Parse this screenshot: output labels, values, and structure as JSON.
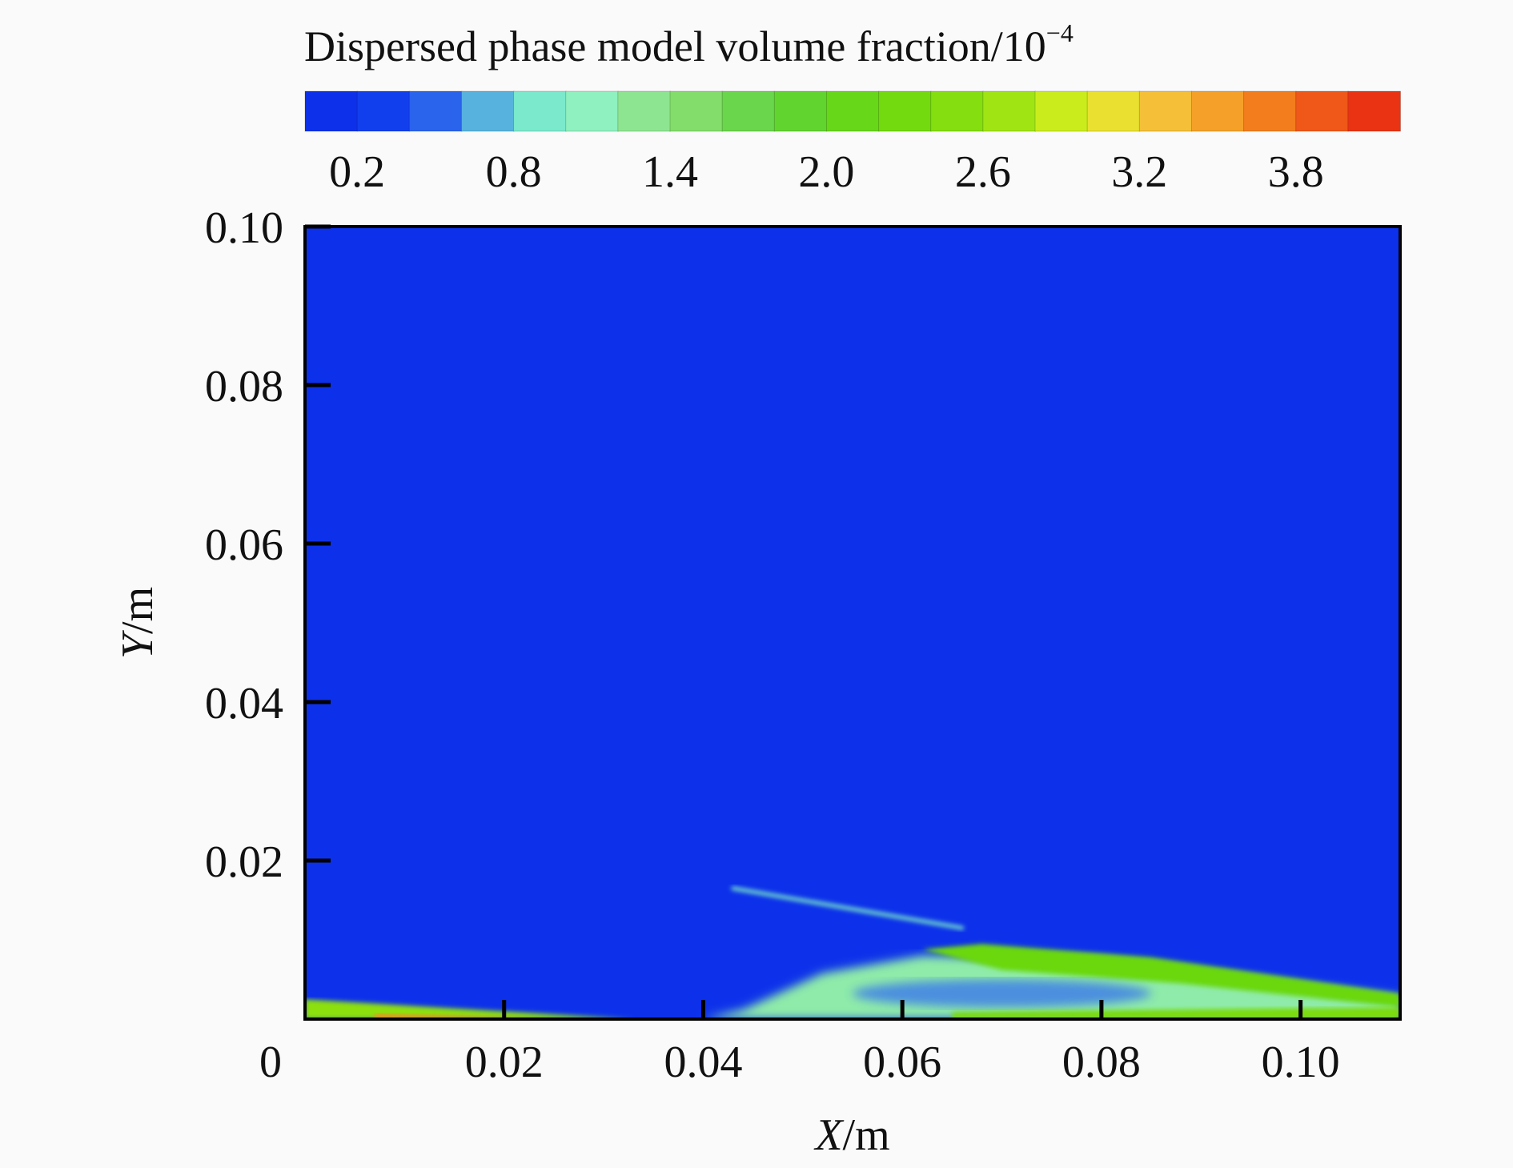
{
  "chart_data": {
    "type": "heatmap",
    "colorbar": {
      "title": "Dispersed phase model volume fraction/10",
      "title_exponent": "−4",
      "ticks": [
        "0.2",
        "0.8",
        "1.4",
        "2.0",
        "2.6",
        "3.2",
        "3.8"
      ],
      "range": [
        0,
        4.2
      ],
      "levels": 21,
      "stops": [
        {
          "v": 0.0,
          "color": "#0b2ae8"
        },
        {
          "v": 0.4,
          "color": "#1446f0"
        },
        {
          "v": 0.6,
          "color": "#3f7fe8"
        },
        {
          "v": 0.8,
          "color": "#6fe6d2"
        },
        {
          "v": 1.1,
          "color": "#8ff0c0"
        },
        {
          "v": 1.4,
          "color": "#8de07a"
        },
        {
          "v": 1.8,
          "color": "#5fd33b"
        },
        {
          "v": 2.2,
          "color": "#6ad80f"
        },
        {
          "v": 2.6,
          "color": "#8ce010"
        },
        {
          "v": 3.0,
          "color": "#dff020"
        },
        {
          "v": 3.2,
          "color": "#f5d040"
        },
        {
          "v": 3.6,
          "color": "#f59020"
        },
        {
          "v": 4.2,
          "color": "#e82010"
        }
      ]
    },
    "x_axis": {
      "label": "X",
      "unit": "/m",
      "ticks": [
        "0",
        "0.02",
        "0.04",
        "0.06",
        "0.08",
        "0.10"
      ],
      "tick_values": [
        0,
        0.02,
        0.04,
        0.06,
        0.08,
        0.1
      ],
      "range": [
        0,
        0.11
      ]
    },
    "y_axis": {
      "label": "Y",
      "unit": "/m",
      "ticks": [
        "0.02",
        "0.04",
        "0.06",
        "0.08",
        "0.10"
      ],
      "tick_values": [
        0.02,
        0.04,
        0.06,
        0.08,
        0.1
      ],
      "range": [
        0,
        0.1
      ]
    },
    "background_level": 0.1,
    "field_regions": [
      {
        "region": "near-wall film",
        "x": [
          0,
          0.033
        ],
        "y": [
          0,
          0.0025
        ],
        "level": 2.6
      },
      {
        "region": "wall film peak",
        "x": [
          0.007,
          0.024
        ],
        "y": [
          0,
          0.0007
        ],
        "level": 3.6
      },
      {
        "region": "spray plume",
        "x": [
          0.04,
          0.11
        ],
        "y": [
          0,
          0.008
        ],
        "level": 1.2
      },
      {
        "region": "plume upper band",
        "x": [
          0.062,
          0.11
        ],
        "y": [
          0.0045,
          0.0095
        ],
        "level": 2.2
      },
      {
        "region": "plume core",
        "x": [
          0.055,
          0.085
        ],
        "y": [
          0.0015,
          0.005
        ],
        "level": 0.6
      },
      {
        "region": "lower rim",
        "x": [
          0.065,
          0.11
        ],
        "y": [
          0,
          0.0015
        ],
        "level": 2.4
      },
      {
        "region": "streak",
        "x": [
          0.043,
          0.066
        ],
        "y": [
          0.0115,
          0.0165
        ],
        "level": 0.9
      }
    ]
  }
}
